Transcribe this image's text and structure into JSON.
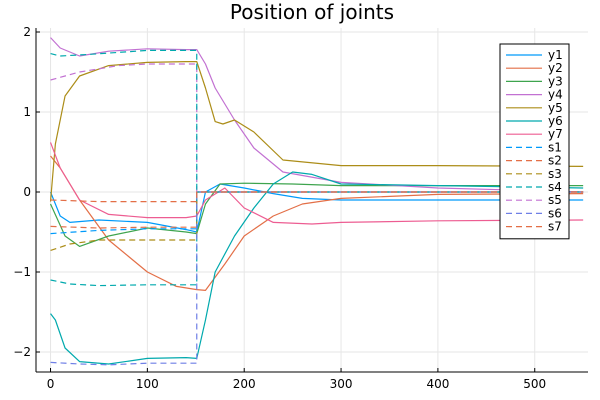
{
  "chart_data": {
    "type": "line",
    "title": "Position of joints",
    "xlabel": "",
    "ylabel": "",
    "xlim": [
      -15,
      555
    ],
    "ylim": [
      -2.25,
      2.05
    ],
    "xticks": [
      0,
      100,
      200,
      300,
      400,
      500
    ],
    "yticks": [
      -2,
      -1,
      0,
      1,
      2
    ],
    "ytick_labels": [
      "−2",
      "−1",
      "0",
      "1",
      "2"
    ],
    "grid": true,
    "legend_position": "top-right",
    "series": [
      {
        "name": "y1",
        "color": "#009AFA",
        "dash": false,
        "x": [
          0,
          10,
          20,
          50,
          100,
          140,
          151,
          160,
          175,
          200,
          230,
          260,
          300,
          400,
          550
        ],
        "y": [
          0.0,
          -0.3,
          -0.38,
          -0.35,
          -0.38,
          -0.47,
          -0.5,
          0.0,
          0.1,
          0.05,
          -0.02,
          -0.08,
          -0.1,
          -0.1,
          -0.1
        ]
      },
      {
        "name": "y2",
        "color": "#E36F47",
        "dash": false,
        "x": [
          0,
          10,
          30,
          60,
          100,
          130,
          151,
          160,
          180,
          200,
          230,
          260,
          300,
          400,
          550
        ],
        "y": [
          0.45,
          0.3,
          -0.1,
          -0.6,
          -1.0,
          -1.18,
          -1.22,
          -1.23,
          -0.9,
          -0.55,
          -0.3,
          -0.15,
          -0.08,
          -0.03,
          -0.02
        ]
      },
      {
        "name": "y3",
        "color": "#3EA44E",
        "dash": false,
        "x": [
          0,
          15,
          30,
          60,
          100,
          140,
          151,
          160,
          175,
          200,
          250,
          300,
          550
        ],
        "y": [
          -0.15,
          -0.55,
          -0.68,
          -0.55,
          -0.45,
          -0.5,
          -0.52,
          -0.15,
          0.1,
          0.11,
          0.1,
          0.08,
          0.08
        ]
      },
      {
        "name": "y4",
        "color": "#C271D2",
        "dash": false,
        "x": [
          0,
          10,
          30,
          60,
          100,
          140,
          151,
          160,
          170,
          190,
          210,
          240,
          300,
          400,
          550
        ],
        "y": [
          1.93,
          1.8,
          1.7,
          1.76,
          1.79,
          1.78,
          1.78,
          1.6,
          1.3,
          0.9,
          0.55,
          0.25,
          0.12,
          0.05,
          0.0
        ]
      },
      {
        "name": "y5",
        "color": "#AC8D18",
        "dash": false,
        "x": [
          0,
          5,
          15,
          30,
          60,
          100,
          140,
          151,
          160,
          170,
          178,
          190,
          210,
          240,
          300,
          400,
          550
        ],
        "y": [
          -0.12,
          0.6,
          1.2,
          1.45,
          1.58,
          1.62,
          1.63,
          1.63,
          1.3,
          0.88,
          0.85,
          0.9,
          0.75,
          0.4,
          0.33,
          0.33,
          0.32
        ]
      },
      {
        "name": "y6",
        "color": "#00A9AD",
        "dash": false,
        "x": [
          0,
          5,
          15,
          30,
          60,
          100,
          140,
          151,
          160,
          170,
          190,
          210,
          230,
          250,
          270,
          300,
          400,
          550
        ],
        "y": [
          -1.52,
          -1.6,
          -1.95,
          -2.12,
          -2.15,
          -2.08,
          -2.07,
          -2.08,
          -1.6,
          -1.0,
          -0.55,
          -0.2,
          0.1,
          0.25,
          0.22,
          0.1,
          0.08,
          0.05
        ]
      },
      {
        "name": "y7",
        "color": "#ED5D92",
        "dash": false,
        "x": [
          0,
          10,
          30,
          60,
          100,
          140,
          151,
          160,
          180,
          200,
          230,
          270,
          300,
          400,
          550
        ],
        "y": [
          0.62,
          0.3,
          -0.1,
          -0.28,
          -0.32,
          -0.32,
          -0.3,
          -0.1,
          0.05,
          -0.2,
          -0.38,
          -0.4,
          -0.38,
          -0.36,
          -0.35
        ]
      },
      {
        "name": "s1",
        "color": "#009AFA",
        "dash": true,
        "x": [
          0,
          50,
          100,
          151,
          151,
          550
        ],
        "y": [
          -0.52,
          -0.48,
          -0.46,
          -0.46,
          0.0,
          0.0
        ]
      },
      {
        "name": "s2",
        "color": "#E36F47",
        "dash": true,
        "x": [
          0,
          50,
          100,
          151,
          151,
          550
        ],
        "y": [
          -0.43,
          -0.45,
          -0.44,
          -0.44,
          0.0,
          0.0
        ]
      },
      {
        "name": "s3",
        "color": "#AC8D18",
        "dash": true,
        "x": [
          0,
          20,
          50,
          100,
          151,
          151,
          550
        ],
        "y": [
          -0.73,
          -0.65,
          -0.6,
          -0.6,
          -0.6,
          0.0,
          0.0
        ]
      },
      {
        "name": "s4",
        "color": "#00A9AD",
        "dash": true,
        "x": [
          0,
          20,
          50,
          100,
          151,
          151,
          550
        ],
        "y": [
          -1.1,
          -1.15,
          -1.17,
          -1.16,
          -1.16,
          0.0,
          0.0
        ]
      },
      {
        "name": "s5",
        "color": "#C271D2",
        "dash": true,
        "x": [
          0,
          30,
          70,
          100,
          151,
          151,
          550
        ],
        "y": [
          1.4,
          1.5,
          1.58,
          1.6,
          1.6,
          0.0,
          0.0
        ]
      },
      {
        "name": "s6",
        "color": "#6F7FE6",
        "dash": true,
        "x": [
          0,
          30,
          60,
          100,
          151,
          151,
          550
        ],
        "y": [
          -2.13,
          -2.15,
          -2.16,
          -2.14,
          -2.14,
          0.0,
          0.0
        ]
      },
      {
        "name": "s7",
        "color": "#E36F47",
        "dash": true,
        "x": [
          0,
          50,
          100,
          151,
          151,
          550
        ],
        "y": [
          -0.1,
          -0.12,
          -0.12,
          -0.12,
          0.0,
          0.0
        ]
      },
      {
        "name": "",
        "color": "#00A9AD",
        "dash": true,
        "x": [
          0,
          10,
          40,
          100,
          151,
          151
        ],
        "y": [
          1.73,
          1.7,
          1.72,
          1.77,
          1.77,
          0.0
        ]
      }
    ]
  }
}
